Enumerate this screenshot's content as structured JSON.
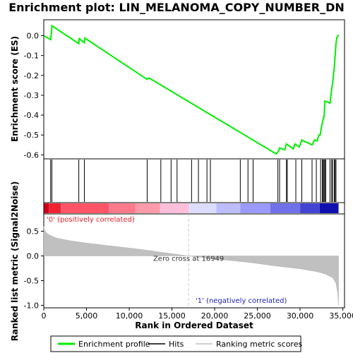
{
  "chart_data": {
    "type": "line",
    "title": "Enrichment plot: LIN_MELANOMA_COPY_NUMBER_DN",
    "top_panel": {
      "ylabel": "Enrichment score (ES)",
      "ylim": [
        -0.62,
        0.08
      ],
      "yticks": [
        0.0,
        -0.1,
        -0.2,
        -0.3,
        -0.4,
        -0.5,
        -0.6
      ],
      "ytick_labels": [
        "0.0",
        "-0.1",
        "-0.2",
        "-0.3",
        "-0.4",
        "-0.5",
        "-0.6"
      ],
      "grid": false,
      "series": [
        {
          "name": "Enrichment profile",
          "color": "#00ee00",
          "x": [
            0,
            800,
            900,
            950,
            4100,
            4150,
            4750,
            4800,
            12100,
            12200,
            12400,
            27200,
            27500,
            27600,
            28200,
            28400,
            29200,
            29400,
            29900,
            30200,
            31400,
            31700,
            32000,
            32200,
            32350,
            32500,
            32600,
            32700,
            32800,
            32900,
            33000,
            33500,
            33700,
            33800,
            33900,
            34000,
            34100,
            34200,
            34300,
            34500
          ],
          "y": [
            0.0,
            -0.02,
            0.015,
            0.05,
            -0.04,
            -0.015,
            -0.035,
            -0.012,
            -0.22,
            -0.215,
            -0.215,
            -0.595,
            -0.58,
            -0.565,
            -0.575,
            -0.545,
            -0.57,
            -0.545,
            -0.56,
            -0.525,
            -0.55,
            -0.525,
            -0.53,
            -0.5,
            -0.5,
            -0.46,
            -0.44,
            -0.42,
            -0.41,
            -0.33,
            -0.33,
            -0.34,
            -0.27,
            -0.24,
            -0.2,
            -0.16,
            -0.1,
            -0.04,
            -0.01,
            0.005
          ]
        }
      ]
    },
    "hits": {
      "name": "Hits",
      "color": "#000000",
      "x": [
        800,
        950,
        4100,
        4750,
        12100,
        13700,
        14900,
        15600,
        17300,
        18100,
        19100,
        19500,
        23000,
        23900,
        24500,
        27400,
        27600,
        28400,
        28500,
        29500,
        30200,
        31400,
        31900,
        32400,
        32600,
        32700,
        32800,
        32900,
        33000,
        33500,
        33700,
        33800,
        34000,
        34100,
        34200
      ]
    },
    "color_band": {
      "segments": [
        {
          "from": 0,
          "to": 600,
          "color": "#d0001a"
        },
        {
          "from": 600,
          "to": 2000,
          "color": "#ee2233"
        },
        {
          "from": 2000,
          "to": 7600,
          "color": "#ff5566"
        },
        {
          "from": 7600,
          "to": 10700,
          "color": "#ff7a8a"
        },
        {
          "from": 10700,
          "to": 13600,
          "color": "#ff9aa8"
        },
        {
          "from": 13600,
          "to": 17000,
          "color": "#ffbfdb"
        },
        {
          "from": 17000,
          "to": 20200,
          "color": "#dcdcff"
        },
        {
          "from": 20200,
          "to": 23000,
          "color": "#bcbcff"
        },
        {
          "from": 23000,
          "to": 26500,
          "color": "#9a9aff"
        },
        {
          "from": 26500,
          "to": 30000,
          "color": "#7070e8"
        },
        {
          "from": 30000,
          "to": 32300,
          "color": "#4444d4"
        },
        {
          "from": 32300,
          "to": 34500,
          "color": "#1010b0"
        }
      ]
    },
    "bottom_panel": {
      "ylabel": "Ranked list metric (Signal2Noise)",
      "xlabel": "Rank in Ordered Dataset",
      "ylim": [
        -1.05,
        0.85
      ],
      "yticks": [
        0.5,
        0.0,
        -0.5,
        -1.0
      ],
      "ytick_labels": [
        "0.5",
        "0.0",
        "-0.5",
        "-1.0"
      ],
      "xlim": [
        0,
        35200
      ],
      "xticks": [
        0,
        5000,
        10000,
        15000,
        20000,
        25000,
        30000,
        35000
      ],
      "xtick_labels": [
        "0",
        "5,000",
        "10,000",
        "15,000",
        "20,000",
        "25,000",
        "30,000",
        "35,000"
      ],
      "series": [
        {
          "name": "Ranking metric scores",
          "color": "#c0c0c0",
          "x": [
            0,
            100,
            300,
            700,
            1500,
            3000,
            5000,
            8000,
            11000,
            14000,
            16949,
            20000,
            24000,
            27000,
            30000,
            32000,
            33000,
            33800,
            34200,
            34400,
            34500
          ],
          "y": [
            0.6,
            0.52,
            0.47,
            0.42,
            0.36,
            0.31,
            0.26,
            0.2,
            0.14,
            0.07,
            0.0,
            -0.06,
            -0.13,
            -0.2,
            -0.26,
            -0.32,
            -0.37,
            -0.44,
            -0.55,
            -0.75,
            -1.0
          ]
        }
      ],
      "zero_cross": 16949,
      "annotations": {
        "zero_cross": "Zero cross at 16949",
        "positive": "'0' (positively correlated)",
        "negative": "'1' (negatively correlated)"
      }
    },
    "legend": {
      "placement": "bottom",
      "entries": [
        {
          "label": "Enrichment profile",
          "color": "#00ee00"
        },
        {
          "label": "Hits",
          "color": "#000000"
        },
        {
          "label": "Ranking metric scores",
          "color": "#c0c0c0"
        }
      ]
    }
  }
}
